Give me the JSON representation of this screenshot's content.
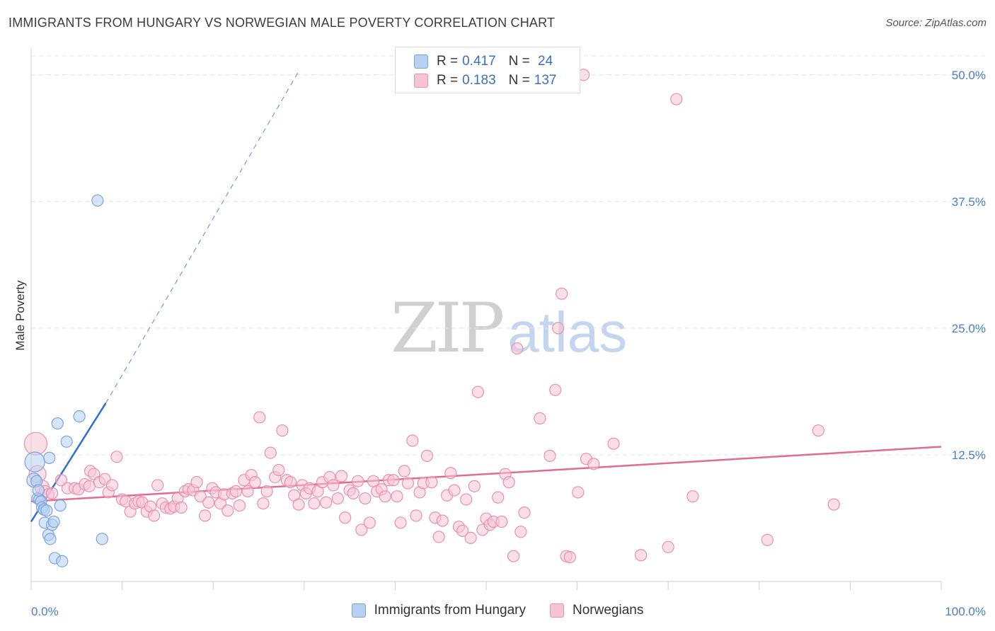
{
  "title": "IMMIGRANTS FROM HUNGARY VS NORWEGIAN MALE POVERTY CORRELATION CHART",
  "source": "Source: ZipAtlas.com",
  "watermark": {
    "zip": "ZIP",
    "atlas": "atlas"
  },
  "colors": {
    "hungary_fill": "#b7d0f3",
    "hungary_stroke": "#7aa4dd",
    "hungary_line": "#2f6fd0",
    "norway_fill": "#f7c4d4",
    "norway_stroke": "#e98fb0",
    "norway_line": "#e06b95",
    "tick_text": "#4a7cc9",
    "grid": "#e3e3e3"
  },
  "legend": {
    "rows": [
      {
        "r_label": "R = ",
        "r_value": "0.417",
        "n_label": "N = ",
        "n_value": " 24"
      },
      {
        "r_label": "R = ",
        "r_value": "0.183",
        "n_label": "N = ",
        "n_value": "137"
      }
    ]
  },
  "chart_data": {
    "type": "scatter",
    "title": "IMMIGRANTS FROM HUNGARY VS NORWEGIAN MALE POVERTY CORRELATION CHART",
    "ylabel": "Male Poverty",
    "xlim": [
      0,
      100
    ],
    "ylim": [
      0,
      52.5
    ],
    "y_ticks": [
      12.5,
      25.0,
      37.5,
      50.0
    ],
    "y_tick_labels": [
      "12.5%",
      "25.0%",
      "37.5%",
      "50.0%"
    ],
    "x_tick_labels": [
      "0.0%",
      "100.0%"
    ],
    "grid": true,
    "legend_position": "top-center",
    "series": [
      {
        "name": "Immigrants from Hungary",
        "r": 0.417,
        "n": 24,
        "trend": {
          "x0": 0,
          "y0": 5.9,
          "x1": 8.2,
          "y1": 17.6,
          "dash_to_x": 29.5,
          "dash_to_y": 50.5
        },
        "points": [
          [
            0.3,
            10.0,
            10
          ],
          [
            0.4,
            11.8,
            14
          ],
          [
            0.6,
            9.9,
            8
          ],
          [
            0.7,
            8.2,
            8
          ],
          [
            0.9,
            8.1,
            8
          ],
          [
            1.1,
            7.9,
            8
          ],
          [
            1.2,
            7.3,
            8
          ],
          [
            1.4,
            7.1,
            8
          ],
          [
            1.5,
            5.8,
            8
          ],
          [
            1.7,
            7.0,
            8
          ],
          [
            1.9,
            4.6,
            8
          ],
          [
            2.0,
            12.2,
            8
          ],
          [
            2.1,
            4.2,
            8
          ],
          [
            2.3,
            5.6,
            8
          ],
          [
            2.5,
            5.9,
            8
          ],
          [
            2.6,
            2.3,
            8
          ],
          [
            2.9,
            15.6,
            8
          ],
          [
            3.2,
            7.5,
            8
          ],
          [
            3.4,
            2.0,
            8
          ],
          [
            3.9,
            13.8,
            8
          ],
          [
            5.3,
            16.3,
            8
          ],
          [
            7.3,
            37.6,
            8
          ],
          [
            7.8,
            4.2,
            8
          ],
          [
            0.8,
            9.0,
            8
          ]
        ]
      },
      {
        "name": "Norwegians",
        "r": 0.183,
        "n": 137,
        "trend": {
          "x0": 0,
          "y0": 7.9,
          "x1": 100,
          "y1": 13.3
        },
        "points": [
          [
            0.5,
            13.6,
            16
          ],
          [
            0.7,
            10.6,
            12
          ],
          [
            1.2,
            9.3,
            10
          ],
          [
            1.5,
            8.9,
            8
          ],
          [
            1.9,
            8.6,
            8
          ],
          [
            2.3,
            8.7,
            8
          ],
          [
            3.3,
            10.0,
            8
          ],
          [
            4.0,
            9.2,
            8
          ],
          [
            4.8,
            9.2,
            8
          ],
          [
            5.2,
            9.1,
            8
          ],
          [
            5.9,
            9.6,
            8
          ],
          [
            6.4,
            9.4,
            8
          ],
          [
            6.5,
            10.9,
            8
          ],
          [
            6.9,
            10.6,
            8
          ],
          [
            7.5,
            9.8,
            8
          ],
          [
            8.1,
            10.1,
            8
          ],
          [
            8.5,
            8.8,
            8
          ],
          [
            8.9,
            9.5,
            8
          ],
          [
            9.4,
            12.3,
            8
          ],
          [
            10.0,
            8.1,
            8
          ],
          [
            10.4,
            7.9,
            8
          ],
          [
            10.9,
            6.9,
            8
          ],
          [
            11.4,
            7.7,
            8
          ],
          [
            11.8,
            7.9,
            8
          ],
          [
            12.2,
            7.8,
            8
          ],
          [
            12.7,
            6.9,
            8
          ],
          [
            13.1,
            7.4,
            8
          ],
          [
            13.5,
            6.5,
            8
          ],
          [
            13.9,
            9.5,
            8
          ],
          [
            14.4,
            7.7,
            8
          ],
          [
            14.8,
            7.3,
            8
          ],
          [
            15.3,
            7.2,
            8
          ],
          [
            15.7,
            7.4,
            8
          ],
          [
            16.1,
            8.2,
            8
          ],
          [
            16.5,
            7.3,
            8
          ],
          [
            16.9,
            8.9,
            8
          ],
          [
            17.3,
            9.1,
            8
          ],
          [
            17.8,
            9.0,
            8
          ],
          [
            18.2,
            9.8,
            8
          ],
          [
            18.6,
            8.4,
            8
          ],
          [
            19.1,
            6.5,
            8
          ],
          [
            19.5,
            7.8,
            8
          ],
          [
            19.9,
            9.2,
            8
          ],
          [
            20.3,
            8.8,
            8
          ],
          [
            20.8,
            7.7,
            8
          ],
          [
            21.2,
            8.6,
            8
          ],
          [
            21.6,
            7.0,
            8
          ],
          [
            22.1,
            8.7,
            8
          ],
          [
            22.5,
            8.9,
            8
          ],
          [
            22.9,
            7.5,
            8
          ],
          [
            23.4,
            10.0,
            8
          ],
          [
            23.8,
            8.9,
            8
          ],
          [
            24.2,
            10.5,
            8
          ],
          [
            24.6,
            9.8,
            8
          ],
          [
            25.1,
            16.2,
            8
          ],
          [
            25.5,
            7.7,
            8
          ],
          [
            25.9,
            8.9,
            8
          ],
          [
            26.3,
            12.7,
            8
          ],
          [
            26.8,
            10.3,
            8
          ],
          [
            27.2,
            11.0,
            8
          ],
          [
            27.6,
            14.9,
            8
          ],
          [
            28.1,
            10.0,
            8
          ],
          [
            28.5,
            9.8,
            8
          ],
          [
            28.9,
            8.5,
            8
          ],
          [
            29.4,
            7.6,
            8
          ],
          [
            29.8,
            9.5,
            8
          ],
          [
            30.2,
            8.7,
            8
          ],
          [
            30.6,
            9.2,
            8
          ],
          [
            31.1,
            7.7,
            8
          ],
          [
            31.5,
            8.9,
            8
          ],
          [
            32.0,
            9.8,
            8
          ],
          [
            32.4,
            7.8,
            8
          ],
          [
            32.8,
            10.3,
            8
          ],
          [
            33.2,
            9.5,
            8
          ],
          [
            33.7,
            8.2,
            8
          ],
          [
            34.1,
            10.4,
            8
          ],
          [
            34.5,
            6.3,
            8
          ],
          [
            35.0,
            9.0,
            8
          ],
          [
            35.4,
            8.7,
            8
          ],
          [
            35.9,
            9.9,
            8
          ],
          [
            36.3,
            5.1,
            8
          ],
          [
            36.7,
            8.2,
            8
          ],
          [
            37.2,
            5.8,
            8
          ],
          [
            37.6,
            9.9,
            8
          ],
          [
            38.0,
            8.9,
            8
          ],
          [
            38.5,
            9.1,
            8
          ],
          [
            38.9,
            8.4,
            8
          ],
          [
            39.3,
            10.0,
            8
          ],
          [
            39.8,
            10.0,
            8
          ],
          [
            40.2,
            8.4,
            8
          ],
          [
            40.6,
            5.8,
            8
          ],
          [
            41.0,
            10.9,
            8
          ],
          [
            41.4,
            9.7,
            8
          ],
          [
            41.9,
            13.9,
            8
          ],
          [
            42.3,
            6.5,
            8
          ],
          [
            42.7,
            8.8,
            8
          ],
          [
            43.1,
            9.7,
            8
          ],
          [
            43.5,
            12.4,
            8
          ],
          [
            44.0,
            9.8,
            8
          ],
          [
            44.4,
            6.3,
            8
          ],
          [
            44.8,
            4.4,
            8
          ],
          [
            45.2,
            6.0,
            8
          ],
          [
            45.7,
            8.5,
            8
          ],
          [
            46.1,
            10.7,
            8
          ],
          [
            46.5,
            9.0,
            8
          ],
          [
            47.0,
            5.4,
            8
          ],
          [
            47.4,
            5.0,
            8
          ],
          [
            47.8,
            8.1,
            8
          ],
          [
            48.3,
            4.3,
            8
          ],
          [
            48.7,
            9.4,
            8
          ],
          [
            49.1,
            18.7,
            8
          ],
          [
            49.6,
            5.1,
            8
          ],
          [
            50.0,
            6.2,
            8
          ],
          [
            50.4,
            5.6,
            8
          ],
          [
            50.8,
            5.9,
            8
          ],
          [
            51.3,
            8.3,
            8
          ],
          [
            51.7,
            5.9,
            8
          ],
          [
            52.1,
            10.6,
            8
          ],
          [
            52.5,
            9.8,
            8
          ],
          [
            53.0,
            2.5,
            8
          ],
          [
            53.4,
            23.0,
            8
          ],
          [
            53.8,
            4.9,
            8
          ],
          [
            54.2,
            6.8,
            8
          ],
          [
            55.9,
            16.1,
            8
          ],
          [
            57.0,
            12.4,
            8
          ],
          [
            57.6,
            18.9,
            8
          ],
          [
            57.9,
            25.0,
            8
          ],
          [
            58.3,
            28.4,
            8
          ],
          [
            58.8,
            2.5,
            8
          ],
          [
            59.2,
            2.4,
            8
          ],
          [
            60.1,
            8.8,
            8
          ],
          [
            61.0,
            12.1,
            8
          ],
          [
            61.8,
            11.6,
            8
          ],
          [
            64.0,
            13.6,
            8
          ],
          [
            67.0,
            2.6,
            8
          ],
          [
            70.0,
            3.4,
            8
          ],
          [
            70.9,
            47.6,
            8
          ],
          [
            72.7,
            8.4,
            8
          ],
          [
            80.9,
            4.1,
            8
          ],
          [
            86.5,
            14.9,
            8
          ],
          [
            88.2,
            7.6,
            8
          ],
          [
            60.7,
            50.0,
            8
          ]
        ]
      }
    ]
  }
}
